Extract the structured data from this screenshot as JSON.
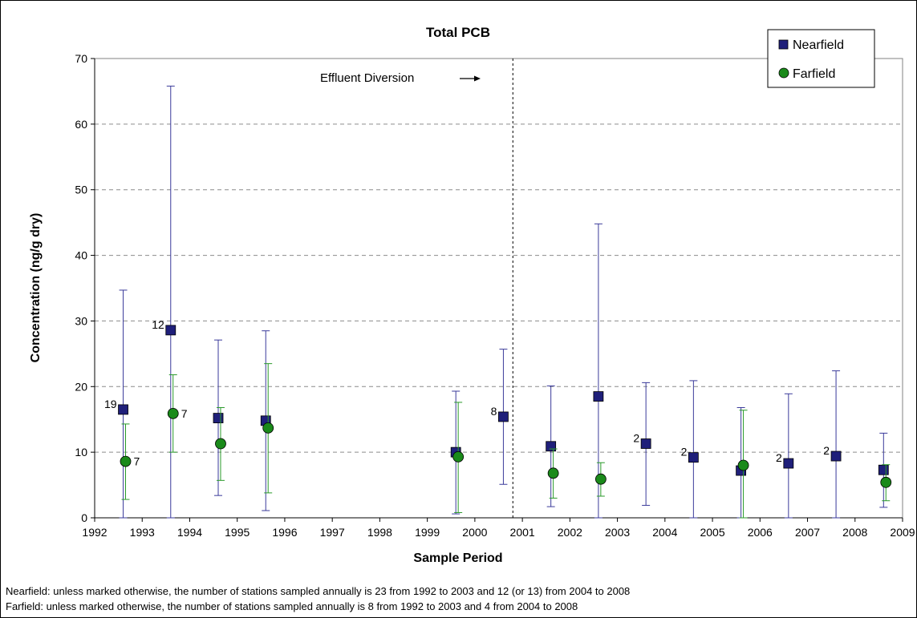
{
  "chart_data": {
    "type": "scatter",
    "title": "Total PCB",
    "xlabel": "Sample Period",
    "ylabel": "Concentration (ng/g dry)",
    "xlim": [
      1992,
      2009
    ],
    "ylim": [
      0,
      70
    ],
    "xticks": [
      "1992",
      "1993",
      "1994",
      "1995",
      "1996",
      "1997",
      "1998",
      "1999",
      "2000",
      "2001",
      "2002",
      "2003",
      "2004",
      "2005",
      "2006",
      "2007",
      "2008",
      "2009"
    ],
    "yticks": [
      "0",
      "10",
      "20",
      "30",
      "40",
      "50",
      "60",
      "70"
    ],
    "grid": "horizontal dashed",
    "legend_position": "top-right",
    "annotation": {
      "text": "Effluent Diversion",
      "marker_x": 2000.8
    },
    "series": [
      {
        "name": "Nearfield",
        "color": "#1f1f7a",
        "marker": "square",
        "points": [
          {
            "x": 1992.6,
            "y": 16.5,
            "low": 0,
            "high": 34.7,
            "label": "19"
          },
          {
            "x": 1993.6,
            "y": 28.6,
            "low": 0,
            "high": 65.8,
            "label": "12"
          },
          {
            "x": 1994.6,
            "y": 15.2,
            "low": 3.4,
            "high": 27.1,
            "label": ""
          },
          {
            "x": 1995.6,
            "y": 14.8,
            "low": 1.1,
            "high": 28.5,
            "label": ""
          },
          {
            "x": 1999.6,
            "y": 10.0,
            "low": 0.6,
            "high": 19.3,
            "label": ""
          },
          {
            "x": 2000.6,
            "y": 15.4,
            "low": 5.1,
            "high": 25.7,
            "label": "8"
          },
          {
            "x": 2001.6,
            "y": 10.9,
            "low": 1.7,
            "high": 20.1,
            "label": ""
          },
          {
            "x": 2002.6,
            "y": 18.5,
            "low": 0,
            "high": 44.8,
            "label": ""
          },
          {
            "x": 2003.6,
            "y": 11.3,
            "low": 1.9,
            "high": 20.6,
            "label": "2"
          },
          {
            "x": 2004.6,
            "y": 9.2,
            "low": 0,
            "high": 20.9,
            "label": "2"
          },
          {
            "x": 2005.6,
            "y": 7.2,
            "low": 0,
            "high": 16.8,
            "label": ""
          },
          {
            "x": 2006.6,
            "y": 8.3,
            "low": 0,
            "high": 18.9,
            "label": "2"
          },
          {
            "x": 2007.6,
            "y": 9.4,
            "low": 0,
            "high": 22.4,
            "label": "2"
          },
          {
            "x": 2008.6,
            "y": 7.3,
            "low": 1.6,
            "high": 12.9,
            "label": ""
          }
        ]
      },
      {
        "name": "Farfield",
        "color": "#1a8a1a",
        "marker": "circle",
        "points": [
          {
            "x": 1992.65,
            "y": 8.6,
            "low": 2.8,
            "high": 14.3,
            "label": "7"
          },
          {
            "x": 1993.65,
            "y": 15.9,
            "low": 10.0,
            "high": 21.8,
            "label": "7"
          },
          {
            "x": 1994.65,
            "y": 11.3,
            "low": 5.7,
            "high": 16.8,
            "label": ""
          },
          {
            "x": 1995.65,
            "y": 13.7,
            "low": 3.8,
            "high": 23.5,
            "label": ""
          },
          {
            "x": 1999.65,
            "y": 9.3,
            "low": 0.8,
            "high": 17.6,
            "label": ""
          },
          {
            "x": 2001.65,
            "y": 6.8,
            "low": 3.0,
            "high": 10.5,
            "label": ""
          },
          {
            "x": 2002.65,
            "y": 5.9,
            "low": 3.3,
            "high": 8.4,
            "label": ""
          },
          {
            "x": 2005.65,
            "y": 8.0,
            "low": 0,
            "high": 16.4,
            "label": ""
          },
          {
            "x": 2008.65,
            "y": 5.4,
            "low": 2.6,
            "high": 8.1,
            "label": ""
          }
        ]
      }
    ]
  },
  "footnotes": {
    "nearfield": "Nearfield: unless marked otherwise, the number of stations sampled annually is 23 from 1992 to 2003 and 12 (or 13) from 2004 to 2008",
    "farfield": "Farfield: unless marked otherwise, the number of stations sampled annually is 8 from 1992 to 2003 and 4 from 2004 to 2008"
  }
}
